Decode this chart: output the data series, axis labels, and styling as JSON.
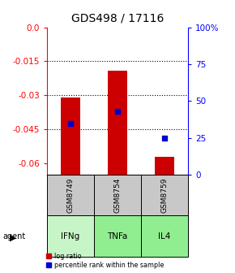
{
  "title": "GDS498 / 17116",
  "samples": [
    "GSM8749",
    "GSM8754",
    "GSM8759"
  ],
  "agents": [
    "IFNg",
    "TNFa",
    "IL4"
  ],
  "log_ratios": [
    -0.031,
    -0.019,
    -0.057
  ],
  "percentile_ranks": [
    35,
    43,
    25
  ],
  "ylim_left": [
    -0.065,
    0.0
  ],
  "ylim_right": [
    0,
    100
  ],
  "left_ticks": [
    0.0,
    -0.015,
    -0.03,
    -0.045,
    -0.06
  ],
  "right_ticks": [
    100,
    75,
    50,
    25,
    0
  ],
  "bar_color": "#cc0000",
  "dot_color": "#0000cc",
  "sample_bg": "#c8c8c8",
  "agent_colors": [
    "#c8f5c8",
    "#90ee90",
    "#90ee90"
  ],
  "bar_width": 0.4,
  "bar_bottom": -0.065,
  "legend_red": "log ratio",
  "legend_blue": "percentile rank within the sample",
  "title_fontsize": 10,
  "tick_fontsize": 7.5,
  "label_fontsize": 7.5
}
